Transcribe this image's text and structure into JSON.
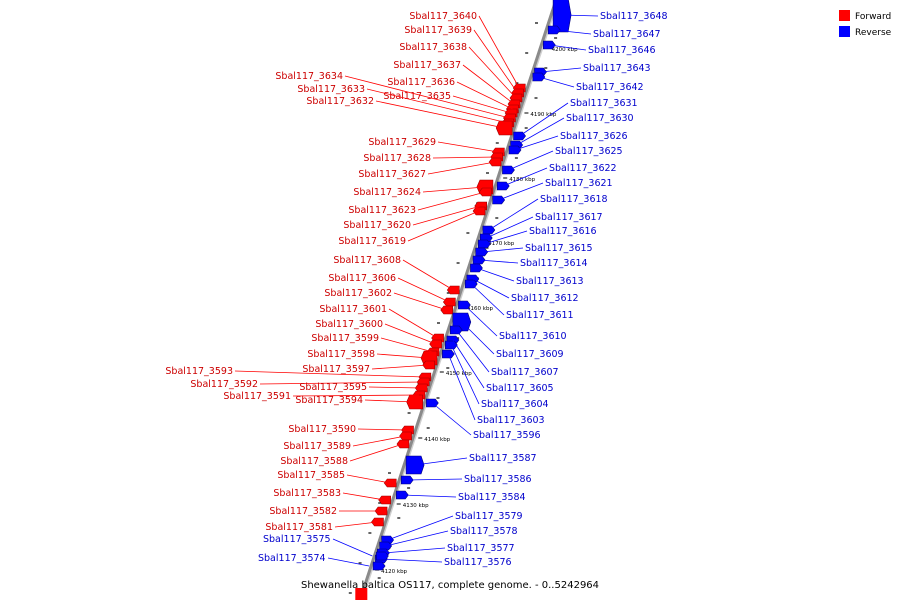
{
  "title": "Shewanella baltica OS117, complete genome. - 0..5242964",
  "legend": {
    "forward": {
      "label": "Forward",
      "color": "#ff0000"
    },
    "reverse": {
      "label": "Reverse",
      "color": "#0000ff"
    }
  },
  "ticks": [
    "4120 kbp",
    "4130 kbp",
    "4140 kbp",
    "4150 kbp",
    "4160 kbp",
    "4170 kbp",
    "4180 kbp",
    "4190 kbp",
    "4200 kbp"
  ],
  "forward_genes": [
    "Sbal117_3640",
    "Sbal117_3639",
    "Sbal117_3638",
    "Sbal117_3637",
    "Sbal117_3636",
    "Sbal117_3635",
    "Sbal117_3634",
    "Sbal117_3633",
    "Sbal117_3632",
    "Sbal117_3629",
    "Sbal117_3628",
    "Sbal117_3627",
    "Sbal117_3624",
    "Sbal117_3623",
    "Sbal117_3620",
    "Sbal117_3619",
    "Sbal117_3608",
    "Sbal117_3606",
    "Sbal117_3602",
    "Sbal117_3601",
    "Sbal117_3600",
    "Sbal117_3599",
    "Sbal117_3598",
    "Sbal117_3597",
    "Sbal117_3593",
    "Sbal117_3592",
    "Sbal117_3595",
    "Sbal117_3591",
    "Sbal117_3594",
    "Sbal117_3590",
    "Sbal117_3589",
    "Sbal117_3588",
    "Sbal117_3585",
    "Sbal117_3583",
    "Sbal117_3582",
    "Sbal117_3581"
  ],
  "reverse_genes": [
    "Sbal117_3648",
    "Sbal117_3647",
    "Sbal117_3646",
    "Sbal117_3643",
    "Sbal117_3642",
    "Sbal117_3631",
    "Sbal117_3630",
    "Sbal117_3626",
    "Sbal117_3625",
    "Sbal117_3622",
    "Sbal117_3621",
    "Sbal117_3618",
    "Sbal117_3617",
    "Sbal117_3616",
    "Sbal117_3615",
    "Sbal117_3614",
    "Sbal117_3613",
    "Sbal117_3612",
    "Sbal117_3611",
    "Sbal117_3610",
    "Sbal117_3609",
    "Sbal117_3607",
    "Sbal117_3605",
    "Sbal117_3604",
    "Sbal117_3603",
    "Sbal117_3596",
    "Sbal117_3587",
    "Sbal117_3586",
    "Sbal117_3584",
    "Sbal117_3579",
    "Sbal117_3578",
    "Sbal117_3577",
    "Sbal117_3576",
    "Sbal117_3575",
    "Sbal117_3574"
  ]
}
